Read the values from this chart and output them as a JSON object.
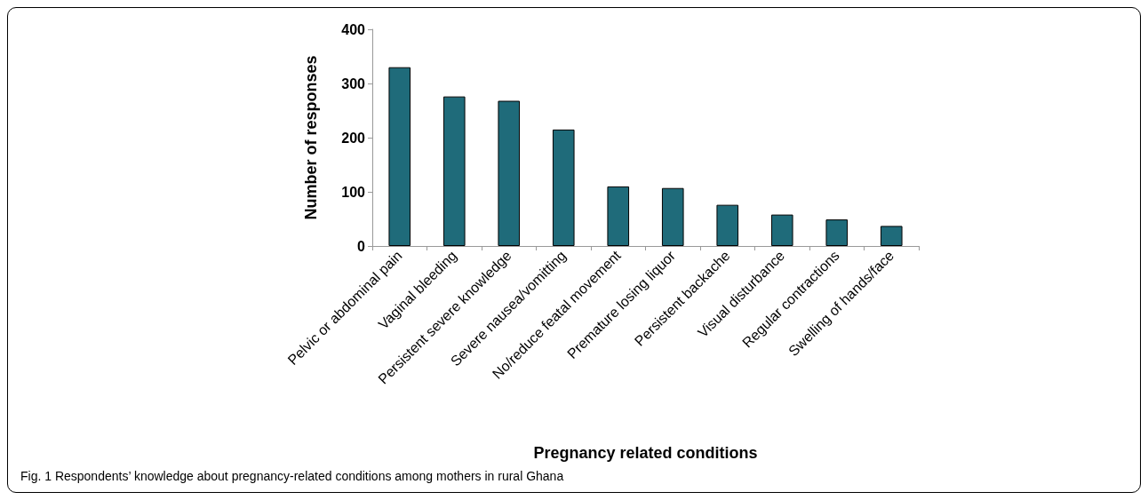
{
  "chart_data": {
    "type": "bar",
    "xlabel": "Pregnancy related conditions",
    "ylabel": "Number of responses",
    "categories": [
      "Pelvic or abdominal pain",
      "Vaginal bleeding",
      "Persistent severe knowledge",
      "Severe nausea/vomitting",
      "No/reduce featal movement",
      "Premature losing liquor",
      "Persistent backache",
      "Visual disturbance",
      "Regular contractions",
      "Swelling of hands/face"
    ],
    "values": [
      330,
      276,
      268,
      215,
      110,
      107,
      76,
      58,
      49,
      37
    ],
    "color": "#1f6b7a",
    "ylim": [
      0,
      400
    ],
    "yticks": [
      0,
      100,
      200,
      300,
      400
    ],
    "grid": false,
    "annotations": [
      "Fig. 1 Respondents’ knowledge about pregnancy-related conditions among mothers in rural Ghana"
    ]
  }
}
